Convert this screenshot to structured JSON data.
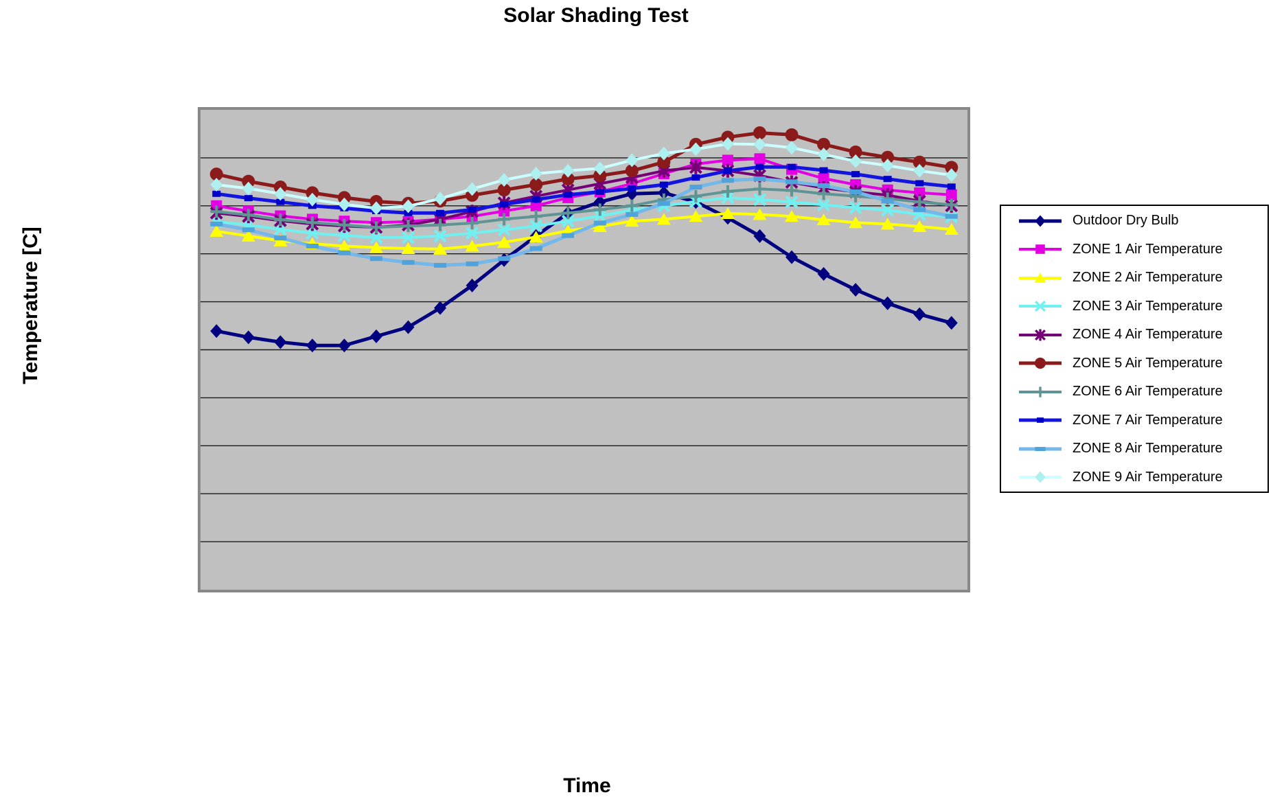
{
  "chart": {
    "title": "Solar Shading Test",
    "y_axis_title": "Temperature [C]",
    "x_axis_title": "Time",
    "plot_area_bg": "#C0C0C0",
    "plot_border_color": "#888888",
    "gridline_color": "#1A1A1A",
    "legend_bg": "#FFFFFF",
    "legend_border_color": "#000000"
  },
  "chart_data": {
    "type": "line",
    "title": "Solar Shading Test",
    "xlabel": "Time",
    "ylabel": "Temperature [C]",
    "legend_position": "right",
    "grid": "horizontal gridlines only",
    "y_gridline_divisions": 10,
    "ylim": [
      0,
      10
    ],
    "axis_ticks_note": "No numeric tick labels are visible on either axis. Values are expressed in gridline units: 0 = plot bottom, 10 = plot top, one horizontal gridline per unit. 24 hourly points across an unlabeled Time axis.",
    "x": [
      1,
      2,
      3,
      4,
      5,
      6,
      7,
      8,
      9,
      10,
      11,
      12,
      13,
      14,
      15,
      16,
      17,
      18,
      19,
      20,
      21,
      22,
      23,
      24
    ],
    "series": [
      {
        "name": "Outdoor Dry Bulb",
        "color": "#000080",
        "marker": "diamond",
        "marker_color": "#000080",
        "line_width": 5,
        "values": [
          5.39,
          5.26,
          5.16,
          5.09,
          5.09,
          5.28,
          5.47,
          5.87,
          6.34,
          6.87,
          7.37,
          7.85,
          8.08,
          8.25,
          8.27,
          8.08,
          7.75,
          7.37,
          6.93,
          6.58,
          6.25,
          5.97,
          5.74,
          5.56
        ]
      },
      {
        "name": "ZONE 1 Air Temperature",
        "color": "#E300E3",
        "marker": "square",
        "marker_color": "#E300E3",
        "line_width": 4,
        "values": [
          8.0,
          7.89,
          7.79,
          7.72,
          7.68,
          7.65,
          7.67,
          7.72,
          7.78,
          7.89,
          8.0,
          8.17,
          8.29,
          8.46,
          8.67,
          8.87,
          8.95,
          8.98,
          8.76,
          8.57,
          8.44,
          8.33,
          8.27,
          8.23
        ]
      },
      {
        "name": "ZONE 2 Air Temperature",
        "color": "#FFFF00",
        "marker": "triangle",
        "marker_color": "#FFFF00",
        "line_width": 4,
        "values": [
          7.47,
          7.37,
          7.27,
          7.21,
          7.16,
          7.13,
          7.11,
          7.1,
          7.16,
          7.24,
          7.35,
          7.48,
          7.57,
          7.68,
          7.72,
          7.78,
          7.84,
          7.82,
          7.78,
          7.71,
          7.65,
          7.62,
          7.57,
          7.51
        ]
      },
      {
        "name": "ZONE 3 Air Temperature",
        "color": "#70F0F0",
        "marker": "x",
        "marker_color": "#70F0F0",
        "line_width": 4,
        "values": [
          7.67,
          7.6,
          7.51,
          7.43,
          7.38,
          7.34,
          7.34,
          7.37,
          7.43,
          7.5,
          7.58,
          7.68,
          7.79,
          7.91,
          8.0,
          8.09,
          8.17,
          8.13,
          8.08,
          8.02,
          7.96,
          7.91,
          7.82,
          7.77
        ]
      },
      {
        "name": "ZONE 4 Air Temperature",
        "color": "#750075",
        "marker": "star",
        "marker_color": "#750075",
        "line_width": 4,
        "values": [
          7.85,
          7.78,
          7.69,
          7.62,
          7.58,
          7.55,
          7.6,
          7.72,
          7.88,
          8.06,
          8.2,
          8.33,
          8.46,
          8.59,
          8.73,
          8.8,
          8.73,
          8.63,
          8.49,
          8.37,
          8.29,
          8.22,
          8.1,
          8.0
        ]
      },
      {
        "name": "ZONE 5 Air Temperature",
        "color": "#8B1A1A",
        "marker": "circle",
        "marker_color": "#8B1A1A",
        "line_width": 5,
        "values": [
          8.66,
          8.51,
          8.39,
          8.27,
          8.17,
          8.09,
          8.05,
          8.1,
          8.22,
          8.33,
          8.44,
          8.56,
          8.63,
          8.73,
          8.91,
          9.28,
          9.43,
          9.52,
          9.48,
          9.28,
          9.12,
          9.01,
          8.91,
          8.8
        ]
      },
      {
        "name": "ZONE 6 Air Temperature",
        "color": "#5E9494",
        "marker": "plus",
        "marker_color": "#5E9494",
        "line_width": 4,
        "values": [
          7.88,
          7.81,
          7.71,
          7.65,
          7.6,
          7.55,
          7.58,
          7.6,
          7.64,
          7.72,
          7.78,
          7.85,
          7.92,
          8.0,
          8.13,
          8.2,
          8.3,
          8.35,
          8.32,
          8.25,
          8.2,
          8.15,
          8.08,
          8.02
        ]
      },
      {
        "name": "ZONE 7 Air Temperature",
        "color": "#1414E0",
        "marker": "dash-short",
        "marker_color": "#0000C8",
        "line_width": 5,
        "values": [
          8.25,
          8.16,
          8.08,
          8.0,
          7.95,
          7.89,
          7.85,
          7.85,
          7.92,
          8.03,
          8.13,
          8.23,
          8.29,
          8.36,
          8.44,
          8.59,
          8.73,
          8.81,
          8.81,
          8.74,
          8.66,
          8.56,
          8.47,
          8.4
        ]
      },
      {
        "name": "ZONE 8 Air Temperature",
        "color": "#74B7E8",
        "marker": "dash",
        "marker_color": "#4FA3DC",
        "line_width": 5,
        "values": [
          7.62,
          7.5,
          7.33,
          7.16,
          7.02,
          6.9,
          6.82,
          6.76,
          6.79,
          6.9,
          7.11,
          7.38,
          7.64,
          7.82,
          8.05,
          8.39,
          8.53,
          8.56,
          8.5,
          8.42,
          8.29,
          8.1,
          7.92,
          7.78
        ]
      },
      {
        "name": "ZONE 9 Air Temperature",
        "color": "#CCFFFF",
        "marker": "diamond",
        "marker_color": "#AEEFEF",
        "line_width": 4,
        "values": [
          8.44,
          8.36,
          8.25,
          8.13,
          8.03,
          7.95,
          7.99,
          8.15,
          8.35,
          8.54,
          8.67,
          8.73,
          8.78,
          8.95,
          9.09,
          9.18,
          9.29,
          9.28,
          9.21,
          9.07,
          8.93,
          8.84,
          8.73,
          8.64
        ]
      }
    ]
  }
}
